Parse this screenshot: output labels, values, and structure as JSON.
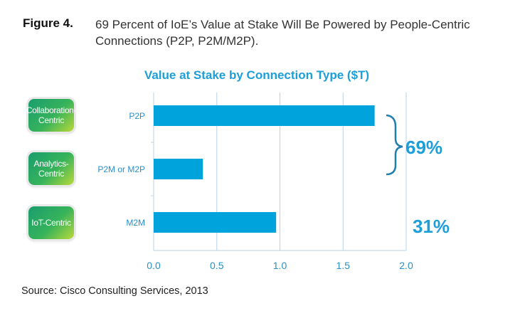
{
  "figure": {
    "label": "Figure 4.",
    "caption": "69 Percent of IoE’s Value at Stake Will Be Powered by People-Centric Connections (P2P, P2M/M2P)."
  },
  "categories_boxes": [
    "Collaboration-Centric",
    "Analytics-Centric",
    "IoT-Centric"
  ],
  "source": "Source: Cisco Consulting Services, 2013",
  "colors": {
    "bar": "#00a3dc",
    "title": "#1d9ed9",
    "grid": "#b8d2e6",
    "brace": "#1f7fb0"
  },
  "chart_data": {
    "type": "bar",
    "orientation": "horizontal",
    "title": "Value at Stake by Connection Type ($T)",
    "categories": [
      "P2P",
      "P2M or M2P",
      "M2M"
    ],
    "values": [
      1.75,
      0.39,
      0.97
    ],
    "xlim": [
      0,
      2.0
    ],
    "xticks": [
      "0.0",
      "0.5",
      "1.0",
      "1.5",
      "2.0"
    ],
    "grid": true,
    "annotations": [
      {
        "text": "69%",
        "groups": [
          "P2P",
          "P2M or M2P"
        ]
      },
      {
        "text": "31%",
        "groups": [
          "M2M"
        ]
      }
    ]
  }
}
